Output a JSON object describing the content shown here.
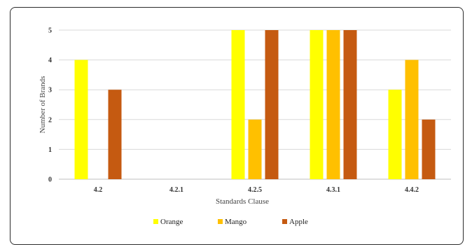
{
  "chart_data": {
    "type": "bar",
    "categories": [
      "4.2",
      "4.2.1",
      "4.2.5",
      "4.3.1",
      "4.4.2"
    ],
    "series": [
      {
        "name": "Orange",
        "values": [
          4,
          0,
          5,
          5,
          3
        ],
        "color": "#FFFF00"
      },
      {
        "name": "Mango",
        "values": [
          0,
          0,
          2,
          5,
          4
        ],
        "color": "#FFC000"
      },
      {
        "name": "Apple",
        "values": [
          3,
          0,
          5,
          5,
          2
        ],
        "color": "#C55A11"
      }
    ],
    "xlabel": "Standards Clause",
    "ylabel": "Number of Brands",
    "ylim": [
      0,
      5
    ],
    "yticks": [
      0,
      1,
      2,
      3,
      4,
      5
    ],
    "grid": true,
    "legend_position": "bottom"
  }
}
